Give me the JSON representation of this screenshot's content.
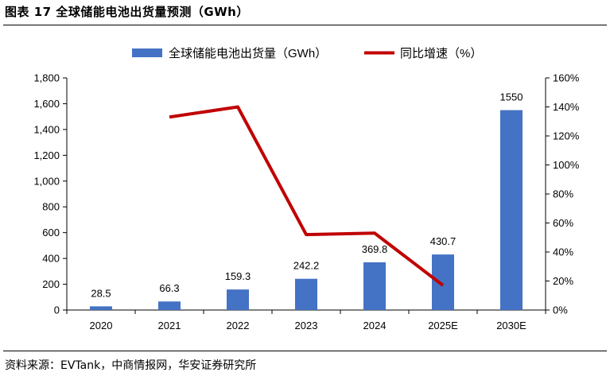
{
  "figure": {
    "title": "图表 17  全球储能电池出货量预测（GWh）",
    "source": "资料来源：EVTank，中商情报网，华安证券研究所"
  },
  "chart_data": {
    "type": "bar",
    "categories": [
      "2020",
      "2021",
      "2022",
      "2023",
      "2024",
      "2025E",
      "2030E"
    ],
    "series": [
      {
        "name": "全球储能电池出货量（GWh）",
        "kind": "bar",
        "axis": "left",
        "color": "#4472c4",
        "values": [
          28.5,
          66.3,
          159.3,
          242.2,
          369.8,
          430.7,
          1550
        ],
        "labels": [
          "28.5",
          "66.3",
          "159.3",
          "242.2",
          "369.8",
          "430.7",
          "1550"
        ]
      },
      {
        "name": "同比增速（%）",
        "kind": "line",
        "axis": "right",
        "color": "#c00000",
        "values": [
          null,
          133,
          140,
          52,
          53,
          17,
          null
        ]
      }
    ],
    "y_left": {
      "ylim": [
        0,
        1800
      ],
      "ticks": [
        0,
        200,
        400,
        600,
        800,
        1000,
        1200,
        1400,
        1600,
        1800
      ],
      "tick_labels": [
        "0",
        "200",
        "400",
        "600",
        "800",
        "1,000",
        "1,200",
        "1,400",
        "1,600",
        "1,800"
      ]
    },
    "y_right": {
      "ylim": [
        0,
        160
      ],
      "ticks": [
        0,
        20,
        40,
        60,
        80,
        100,
        120,
        140,
        160
      ],
      "tick_labels": [
        "0%",
        "20%",
        "40%",
        "60%",
        "80%",
        "100%",
        "120%",
        "140%",
        "160%"
      ]
    },
    "legend": {
      "position": "top"
    },
    "grid": false
  }
}
